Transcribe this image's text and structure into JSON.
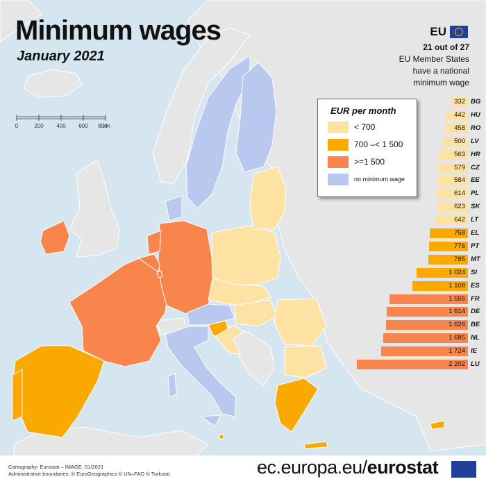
{
  "title": "Minimum wages",
  "subtitle": "January 2021",
  "eu_badge": {
    "label": "EU",
    "flag_icon": "eu-flag-icon"
  },
  "eu_count": {
    "line1": "21 out of 27",
    "line2": "EU Member States",
    "line3": "have a national",
    "line4": "minimum wage"
  },
  "scale_bar": {
    "ticks": [
      "0",
      "200",
      "400",
      "600",
      "800"
    ],
    "unit": "km"
  },
  "legend": {
    "title": "EUR per month",
    "items": [
      {
        "label": "< 700",
        "color": "#fde2a4"
      },
      {
        "label": "700 –< 1 500",
        "color": "#f9a900"
      },
      {
        "label": ">=1 500",
        "color": "#f7854c"
      },
      {
        "label": "no minimum wage",
        "color": "#b9c8ee"
      }
    ]
  },
  "colors": {
    "sea": "#d5e6f1",
    "non_eu_land": "#e6e6e6",
    "border": "#ffffff"
  },
  "chart_data": {
    "type": "bar",
    "orientation": "horizontal",
    "unit": "EUR per month",
    "categories": [
      "BG",
      "HU",
      "RO",
      "LV",
      "HR",
      "CZ",
      "EE",
      "PL",
      "SK",
      "LT",
      "EL",
      "PT",
      "MT",
      "SI",
      "ES",
      "FR",
      "DE",
      "BE",
      "NL",
      "IE",
      "LU"
    ],
    "values": [
      332,
      442,
      458,
      500,
      563,
      579,
      584,
      614,
      623,
      642,
      758,
      776,
      785,
      1024,
      1108,
      1555,
      1614,
      1626,
      1685,
      1724,
      2202
    ],
    "labels": [
      "332",
      "442",
      "458",
      "500",
      "563",
      "579",
      "584",
      "614",
      "623",
      "642",
      "758",
      "776",
      "785",
      "1 024",
      "1 108",
      "1 555",
      "1 614",
      "1 626",
      "1 685",
      "1 724",
      "2 202"
    ],
    "color_classes": [
      "< 700",
      "< 700",
      "< 700",
      "< 700",
      "< 700",
      "< 700",
      "< 700",
      "< 700",
      "< 700",
      "< 700",
      "700 –< 1 500",
      "700 –< 1 500",
      "700 –< 1 500",
      "700 –< 1 500",
      "700 –< 1 500",
      ">=1 500",
      ">=1 500",
      ">=1 500",
      ">=1 500",
      ">=1 500",
      ">=1 500"
    ]
  },
  "footer": {
    "credit1": "Cartography: Eurostat – IMAGE, 01/2021",
    "credit2": "Administrative boundaries: © EuroGeographics © UN–FAO © Turkstat",
    "site_prefix": "ec.europa.eu/",
    "site_brand": "eurostat"
  }
}
